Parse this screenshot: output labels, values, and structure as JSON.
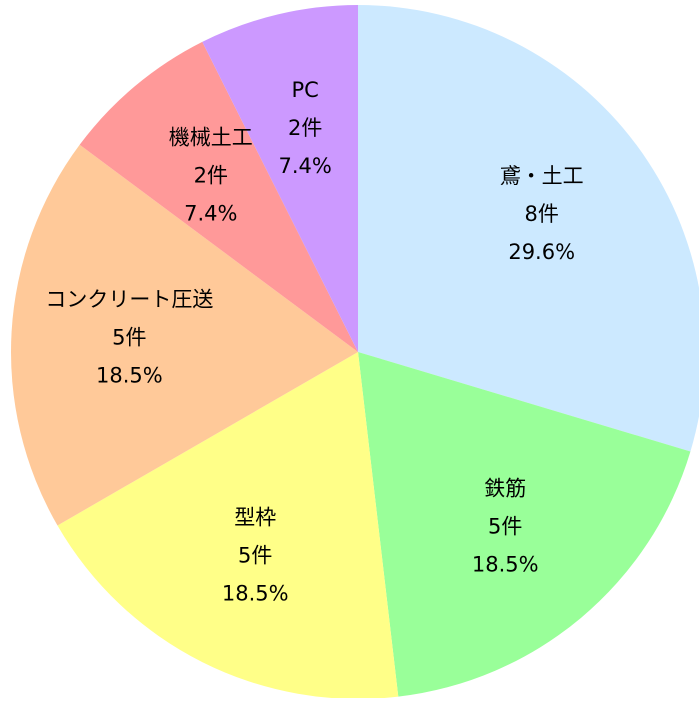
{
  "chart_data": {
    "type": "pie",
    "categories": [
      "鳶・土工",
      "鉄筋",
      "型枠",
      "コンクリート圧送",
      "機械土工",
      "PC"
    ],
    "count_labels": [
      "8件",
      "5件",
      "5件",
      "5件",
      "2件",
      "2件"
    ],
    "values": [
      29.6,
      18.5,
      18.5,
      18.5,
      7.4,
      7.4
    ],
    "value_labels": [
      "29.6%",
      "18.5%",
      "18.5%",
      "18.5%",
      "7.4%",
      "7.4%"
    ],
    "colors": [
      "#cce9ff",
      "#99ff99",
      "#ffff88",
      "#ffc999",
      "#ff9999",
      "#cc99ff"
    ]
  }
}
